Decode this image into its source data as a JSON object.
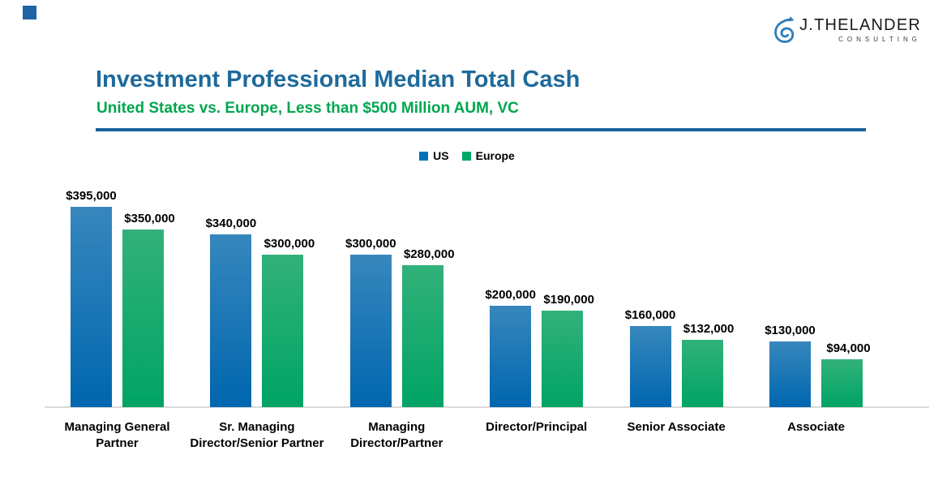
{
  "decor": {
    "accent_square_color": "#1E63A5"
  },
  "logo": {
    "name": "J.THELANDER",
    "tagline": "CONSULTING",
    "spiral_color": "#2C7CBB"
  },
  "header": {
    "title": "Investment Professional Median Total Cash",
    "subtitle": "United States vs. Europe, Less than $500 Million AUM, VC",
    "title_color": "#1E6A9B",
    "subtitle_color": "#00A64F",
    "divider_color": "#16639B"
  },
  "legend": {
    "items": [
      {
        "label": "US",
        "color": "#0072BC"
      },
      {
        "label": "Europe",
        "color": "#00A76B"
      }
    ]
  },
  "chart_data": {
    "type": "bar",
    "title": "Investment Professional Median Total Cash",
    "subtitle": "United States vs. Europe, Less than $500 Million AUM, VC",
    "categories": [
      "Managing General\nPartner",
      "Sr. Managing\nDirector/Senior Partner",
      "Managing\nDirector/Partner",
      "Director/Principal",
      "Senior Associate",
      "Associate"
    ],
    "series": [
      {
        "name": "US",
        "values": [
          395000,
          340000,
          300000,
          200000,
          160000,
          130000
        ],
        "value_labels": [
          "$395,000",
          "$340,000",
          "$300,000",
          "$200,000",
          "$160,000",
          "$130,000"
        ],
        "gradient_top": "#3787BD",
        "gradient_bottom": "#0066AE"
      },
      {
        "name": "Europe",
        "values": [
          350000,
          300000,
          280000,
          190000,
          132000,
          94000
        ],
        "value_labels": [
          "$350,000",
          "$300,000",
          "$280,000",
          "$190,000",
          "$132,000",
          "$94,000"
        ],
        "gradient_top": "#32B17A",
        "gradient_bottom": "#00A465"
      }
    ],
    "ylim": [
      0,
      400000
    ],
    "grid": false,
    "legend_position": "top-center",
    "axis_line_color": "#D9D9D9",
    "value_label_format": "$#,##0"
  }
}
